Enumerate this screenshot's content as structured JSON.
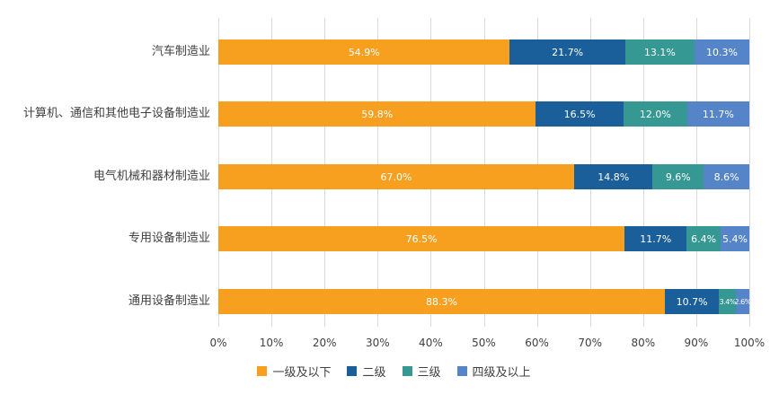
{
  "chart_data": {
    "type": "bar",
    "orientation": "horizontal",
    "stacked": "percent",
    "title": "",
    "xlabel": "",
    "ylabel": "",
    "xlim": [
      0,
      100
    ],
    "grid": true,
    "legend_position": "bottom",
    "categories": [
      "汽车制造业",
      "计算机、通信和其他电子设备制造业",
      "电气机械和器材制造业",
      "专用设备制造业",
      "通用设备制造业"
    ],
    "series": [
      {
        "name": "一级及以下",
        "color": "#F7A020",
        "values": [
          54.9,
          59.8,
          67.0,
          76.5,
          88.3
        ],
        "labels": [
          "54.9%",
          "59.8%",
          "67.0%",
          "76.5%",
          "88.3%"
        ]
      },
      {
        "name": "二级",
        "color": "#1B5F9A",
        "values": [
          21.7,
          16.5,
          14.8,
          11.7,
          10.7
        ],
        "labels": [
          "21.7%",
          "16.5%",
          "14.8%",
          "11.7%",
          "10.7%"
        ]
      },
      {
        "name": "三级",
        "color": "#359893",
        "values": [
          13.1,
          12.0,
          9.6,
          6.4,
          3.4
        ],
        "labels": [
          "13.1%",
          "12.0%",
          "9.6%",
          "6.4%",
          "3.4%"
        ]
      },
      {
        "name": "四级及以上",
        "color": "#5585C8",
        "values": [
          10.3,
          11.7,
          8.6,
          5.4,
          2.6
        ],
        "labels": [
          "10.3%",
          "11.7%",
          "8.6%",
          "5.4%",
          "2.6%"
        ]
      }
    ],
    "x_ticks": [
      "0%",
      "10%",
      "20%",
      "30%",
      "40%",
      "50%",
      "60%",
      "70%",
      "80%",
      "90%",
      "100%"
    ]
  }
}
